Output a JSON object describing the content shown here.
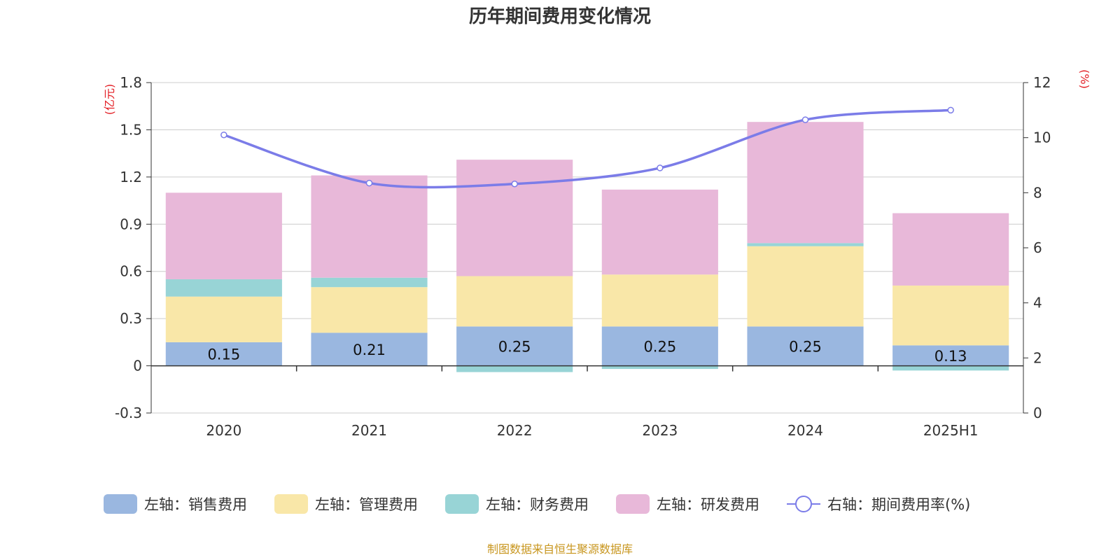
{
  "chart_data": {
    "type": "bar",
    "title": "历年期间费用变化情况",
    "categories": [
      "2020",
      "2021",
      "2022",
      "2023",
      "2024",
      "2025H1"
    ],
    "left_axis": {
      "unit": "(亿元)",
      "ylim": [
        -0.3,
        1.8
      ],
      "ticks": [
        "-0.3",
        "0",
        "0.3",
        "0.6",
        "0.9",
        "1.2",
        "1.5",
        "1.8"
      ]
    },
    "right_axis": {
      "unit": "(%)",
      "ylim": [
        0,
        12
      ],
      "ticks": [
        "0",
        "2",
        "4",
        "6",
        "8",
        "10",
        "12"
      ]
    },
    "grid": true,
    "legend_position": "bottom",
    "series": [
      {
        "name": "左轴：销售费用",
        "type": "bar",
        "stack": "left",
        "color": "#9ab7e0",
        "values": [
          0.15,
          0.21,
          0.25,
          0.25,
          0.25,
          0.13
        ],
        "data_labels": [
          "0.15",
          "0.21",
          "0.25",
          "0.25",
          "0.25",
          "0.13"
        ]
      },
      {
        "name": "左轴：管理费用",
        "type": "bar",
        "stack": "left",
        "color": "#f9e7a8",
        "values": [
          0.29,
          0.29,
          0.32,
          0.33,
          0.51,
          0.38
        ]
      },
      {
        "name": "左轴：财务费用",
        "type": "bar",
        "stack": "left",
        "color": "#98d4d6",
        "values": [
          0.11,
          0.06,
          -0.04,
          -0.02,
          0.02,
          -0.03
        ]
      },
      {
        "name": "左轴：研发费用",
        "type": "bar",
        "stack": "left",
        "color": "#e8b8d9",
        "values": [
          0.55,
          0.65,
          0.74,
          0.54,
          0.77,
          0.46
        ]
      },
      {
        "name": "右轴：期间费用率(%)",
        "type": "line",
        "axis": "right",
        "color": "#7b7ce8",
        "values": [
          10.1,
          8.35,
          8.32,
          8.9,
          10.65,
          11.0
        ]
      }
    ],
    "source": "制图数据来自恒生聚源数据库"
  },
  "colors": {
    "unit_label": "#e31e24",
    "source": "#c8961e",
    "axis": "#333333",
    "grid": "#cccccc"
  }
}
